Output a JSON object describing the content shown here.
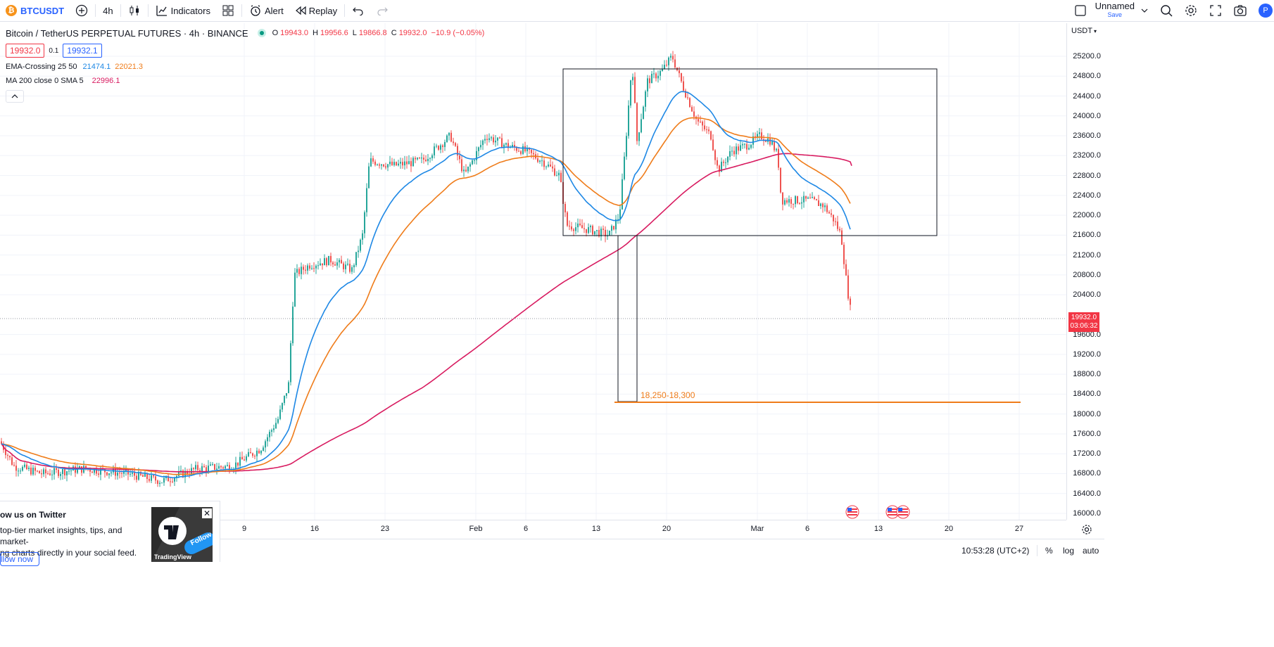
{
  "toolbar": {
    "symbol": "BTCUSDT",
    "interval": "4h",
    "indicators_label": "Indicators",
    "alert_label": "Alert",
    "replay_label": "Replay",
    "layout_name": "Unnamed",
    "save_label": "Save",
    "avatar_letter": "P"
  },
  "legend": {
    "title": "Bitcoin / TetherUS PERPETUAL FUTURES · 4h · BINANCE",
    "o_label": "O",
    "o": "19943.0",
    "h_label": "H",
    "h": "19956.6",
    "l_label": "L",
    "l": "19866.8",
    "c_label": "C",
    "c": "19932.0",
    "change": "−10.9 (−0.05%)",
    "sell_price": "19932.0",
    "spread": "0.1",
    "buy_price": "19932.1",
    "ema_label": "EMA-Crossing 25 50",
    "ema_fast": "21474.1",
    "ema_slow": "22021.3",
    "ma_label": "MA 200 close 0 SMA 5",
    "ma_value": "22996.1"
  },
  "price_axis": {
    "currency": "USDT",
    "ticks": [
      "25200.0",
      "24800.0",
      "24400.0",
      "24000.0",
      "23600.0",
      "23200.0",
      "22800.0",
      "22400.0",
      "22000.0",
      "21600.0",
      "21200.0",
      "20800.0",
      "20400.0",
      "19600.0",
      "19200.0",
      "18800.0",
      "18400.0",
      "18000.0",
      "17600.0",
      "17200.0",
      "16800.0",
      "16400.0",
      "16000.0"
    ],
    "last_price": "19932.0",
    "countdown": "03:06:32"
  },
  "time_axis": {
    "ticks": [
      "9",
      "16",
      "23",
      "Feb",
      "6",
      "13",
      "20",
      "Mar",
      "6",
      "13",
      "20",
      "27"
    ]
  },
  "annotation": {
    "label": "18,250-18,300"
  },
  "bottom": {
    "clock": "10:53:28 (UTC+2)",
    "percent": "%",
    "log": "log",
    "auto": "auto"
  },
  "twitter": {
    "title": "ow us on Twitter",
    "line1": "top-tier market insights, tips, and market-",
    "line2": "ng charts directly in your social feed.",
    "button": "llow now",
    "brand": "TradingView",
    "follow": "Follow"
  },
  "colors": {
    "up": "#26a69a",
    "down": "#ef5350",
    "ema_fast": "#1e88e5",
    "ema_slow": "#ef7c1a",
    "ma": "#d81b60",
    "accent": "#2962ff"
  }
}
